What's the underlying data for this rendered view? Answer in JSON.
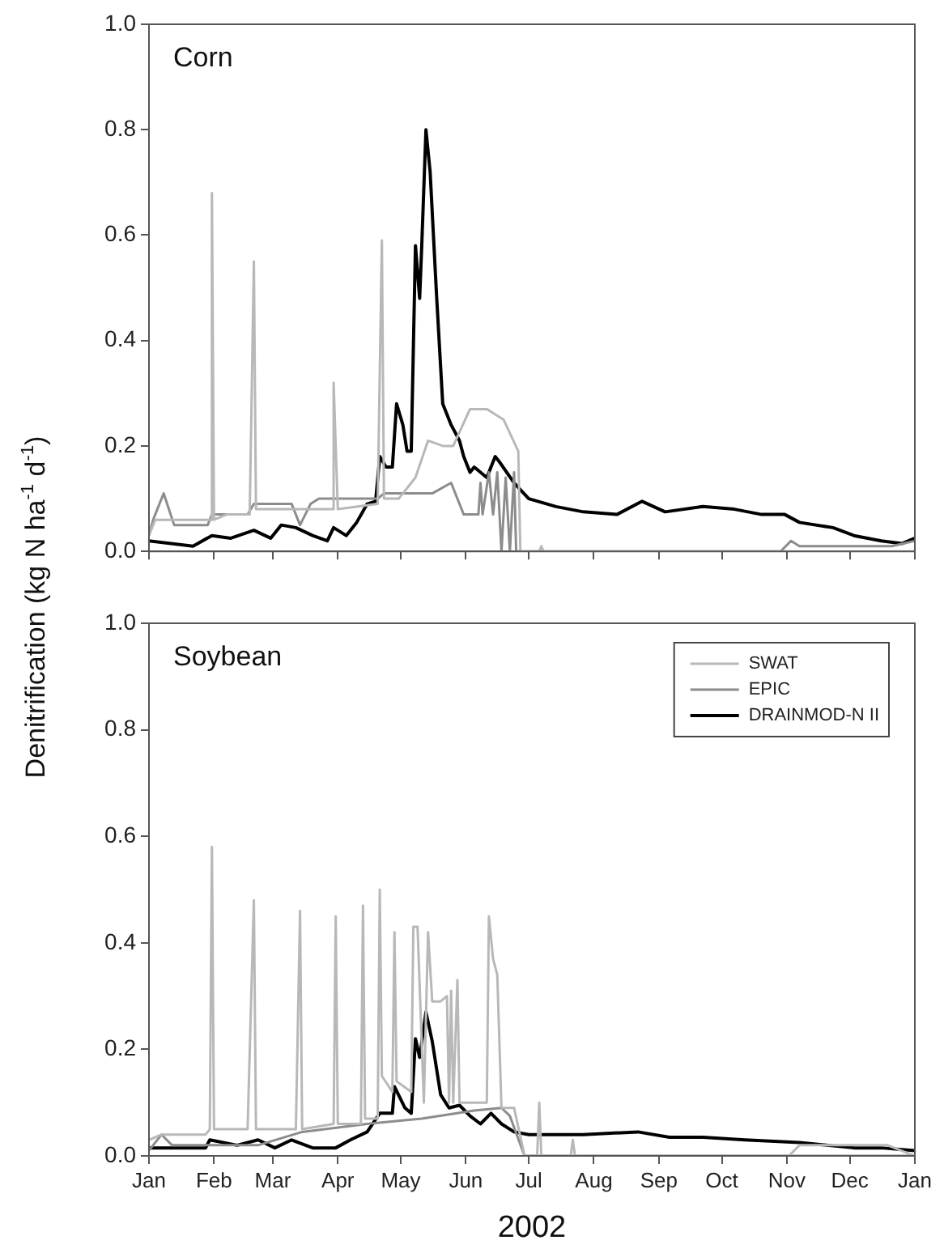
{
  "chart_data": [
    {
      "type": "line",
      "title": "Corn",
      "ylabel": "Denitrification (kg N ha$^{-1}$ d$^{-1}$)",
      "xlim": [
        "2002-01-01",
        "2003-01-01"
      ],
      "ylim": [
        0,
        1
      ],
      "xticks": [
        {
          "value": "2002-01-01",
          "label": null
        },
        {
          "value": "2002-02-01",
          "label": null
        },
        {
          "value": "2002-03-01",
          "label": null
        },
        {
          "value": "2002-04-01",
          "label": null
        },
        {
          "value": "2002-05-01",
          "label": null
        },
        {
          "value": "2002-06-01",
          "label": null
        },
        {
          "value": "2002-07-01",
          "label": null
        },
        {
          "value": "2002-08-01",
          "label": null
        },
        {
          "value": "2002-09-01",
          "label": null
        },
        {
          "value": "2002-10-01",
          "label": null
        },
        {
          "value": "2002-11-01",
          "label": null
        },
        {
          "value": "2002-12-01",
          "label": null
        },
        {
          "value": "2003-01-01",
          "label": null
        }
      ],
      "yticks": [
        {
          "value": 0,
          "label": "0.0"
        },
        {
          "value": 0.2,
          "label": "0.2"
        },
        {
          "value": 0.4,
          "label": "0.4"
        },
        {
          "value": 0.6,
          "label": "0.6"
        },
        {
          "value": 0.8,
          "label": "0.8"
        },
        {
          "value": 1,
          "label": "1.0"
        }
      ],
      "tick_labels": "y",
      "grid": false,
      "legend": false,
      "marker": "none",
      "line_style": "solid",
      "series": [
        {
          "color": "#b8b8b8",
          "x": [
            "2002-01-01",
            "2002-01-04",
            "2002-01-28",
            "2002-01-31",
            "2002-01-31",
            "2002-02-01",
            "2002-02-07",
            "2002-02-18",
            "2002-02-20",
            "2002-02-21",
            "2002-03-10",
            "2002-03-16",
            "2002-03-30",
            "2002-03-30",
            "2002-04-01",
            "2002-04-20",
            "2002-04-22",
            "2002-04-23",
            "2002-04-30",
            "2002-05-08",
            "2002-05-14",
            "2002-05-21",
            "2002-05-26",
            "2002-06-03",
            "2002-06-11",
            "2002-06-19",
            "2002-06-26",
            "2002-06-27",
            "2002-07-06",
            "2002-07-07",
            "2002-07-08",
            "2003-01-01"
          ],
          "values": [
            0.03,
            0.06,
            0.06,
            0.06,
            0.68,
            0.06,
            0.07,
            0.07,
            0.55,
            0.08,
            0.08,
            0.08,
            0.08,
            0.32,
            0.08,
            0.09,
            0.59,
            0.1,
            0.1,
            0.14,
            0.21,
            0.2,
            0.2,
            0.27,
            0.27,
            0.25,
            0.19,
            0,
            0,
            0.01,
            0,
            0
          ]
        },
        {
          "color": "#8c8c8c",
          "x": [
            "2002-01-01",
            "2002-01-03",
            "2002-01-08",
            "2002-01-13",
            "2002-01-29",
            "2002-01-31",
            "2002-02-17",
            "2002-02-20",
            "2002-03-10",
            "2002-03-14",
            "2002-03-19",
            "2002-03-23",
            "2002-04-20",
            "2002-04-23",
            "2002-05-16",
            "2002-05-25",
            "2002-05-31",
            "2002-06-07",
            "2002-06-08",
            "2002-06-09",
            "2002-06-12",
            "2002-06-14",
            "2002-06-16",
            "2002-06-18",
            "2002-06-20",
            "2002-06-22",
            "2002-06-24",
            "2002-06-25",
            "2002-10-29",
            "2002-11-03",
            "2002-11-07",
            "2002-12-03",
            "2002-12-21",
            "2003-01-01"
          ],
          "values": [
            0.03,
            0.06,
            0.11,
            0.05,
            0.05,
            0.07,
            0.07,
            0.09,
            0.09,
            0.05,
            0.09,
            0.1,
            0.1,
            0.11,
            0.11,
            0.13,
            0.07,
            0.07,
            0.13,
            0.07,
            0.15,
            0.07,
            0.15,
            0,
            0.14,
            0,
            0.15,
            0,
            0,
            0.02,
            0.01,
            0.01,
            0.01,
            0.02
          ]
        },
        {
          "color": "#000000",
          "x": [
            "2002-01-01",
            "2002-01-22",
            "2002-01-31",
            "2002-02-09",
            "2002-02-20",
            "2002-02-28",
            "2002-03-05",
            "2002-03-12",
            "2002-03-20",
            "2002-03-27",
            "2002-03-30",
            "2002-04-05",
            "2002-04-10",
            "2002-04-15",
            "2002-04-19",
            "2002-04-21",
            "2002-04-24",
            "2002-04-27",
            "2002-04-29",
            "2002-05-02",
            "2002-05-04",
            "2002-05-06",
            "2002-05-08",
            "2002-05-10",
            "2002-05-11",
            "2002-05-13",
            "2002-05-15",
            "2002-05-18",
            "2002-05-21",
            "2002-05-25",
            "2002-05-29",
            "2002-05-31",
            "2002-06-03",
            "2002-06-05",
            "2002-06-11",
            "2002-06-15",
            "2002-06-17",
            "2002-06-24",
            "2002-07-01",
            "2002-07-14",
            "2002-07-27",
            "2002-08-12",
            "2002-08-24",
            "2002-09-04",
            "2002-09-22",
            "2002-10-07",
            "2002-10-20",
            "2002-10-31",
            "2002-11-07",
            "2002-11-23",
            "2002-12-03",
            "2002-12-16",
            "2002-12-26",
            "2003-01-01"
          ],
          "values": [
            0.02,
            0.01,
            0.03,
            0.025,
            0.04,
            0.025,
            0.05,
            0.045,
            0.03,
            0.02,
            0.045,
            0.03,
            0.055,
            0.09,
            0.095,
            0.18,
            0.16,
            0.16,
            0.28,
            0.24,
            0.19,
            0.19,
            0.58,
            0.48,
            0.58,
            0.8,
            0.72,
            0.49,
            0.28,
            0.24,
            0.21,
            0.18,
            0.15,
            0.16,
            0.14,
            0.18,
            0.17,
            0.13,
            0.1,
            0.085,
            0.075,
            0.07,
            0.095,
            0.075,
            0.085,
            0.08,
            0.07,
            0.07,
            0.055,
            0.045,
            0.03,
            0.02,
            0.015,
            0.025
          ]
        }
      ]
    },
    {
      "type": "line",
      "title": "Soybean",
      "xlabel": "2002",
      "xlim": [
        "2002-01-01",
        "2003-01-01"
      ],
      "ylim": [
        0,
        1
      ],
      "xticks": [
        {
          "value": "2002-01-01",
          "label": "Jan"
        },
        {
          "value": "2002-02-01",
          "label": "Feb"
        },
        {
          "value": "2002-03-01",
          "label": "Mar"
        },
        {
          "value": "2002-04-01",
          "label": "Apr"
        },
        {
          "value": "2002-05-01",
          "label": "May"
        },
        {
          "value": "2002-06-01",
          "label": "Jun"
        },
        {
          "value": "2002-07-01",
          "label": "Jul"
        },
        {
          "value": "2002-08-01",
          "label": "Aug"
        },
        {
          "value": "2002-09-01",
          "label": "Sep"
        },
        {
          "value": "2002-10-01",
          "label": "Oct"
        },
        {
          "value": "2002-11-01",
          "label": "Nov"
        },
        {
          "value": "2002-12-01",
          "label": "Dec"
        },
        {
          "value": "2003-01-01",
          "label": "Jan"
        }
      ],
      "yticks": [
        {
          "value": 0,
          "label": "0.0"
        },
        {
          "value": 0.2,
          "label": "0.2"
        },
        {
          "value": 0.4,
          "label": "0.4"
        },
        {
          "value": 0.6,
          "label": "0.6"
        },
        {
          "value": 0.8,
          "label": "0.8"
        },
        {
          "value": 1,
          "label": "1.0"
        }
      ],
      "grid": false,
      "legend": "top right",
      "marker": "none",
      "line_style": "solid",
      "series": [
        {
          "name": "SWAT",
          "color": "#b8b8b8",
          "x": [
            "2002-01-01",
            "2002-01-07",
            "2002-01-28",
            "2002-01-30",
            "2002-01-31",
            "2002-02-01",
            "2002-02-17",
            "2002-02-20",
            "2002-02-21",
            "2002-03-12",
            "2002-03-14",
            "2002-03-15",
            "2002-03-30",
            "2002-03-31",
            "2002-04-01",
            "2002-04-12",
            "2002-04-13",
            "2002-04-14",
            "2002-04-20",
            "2002-04-21",
            "2002-04-22",
            "2002-04-27",
            "2002-04-28",
            "2002-04-29",
            "2002-05-06",
            "2002-05-07",
            "2002-05-09",
            "2002-05-12",
            "2002-05-14",
            "2002-05-16",
            "2002-05-20",
            "2002-05-23",
            "2002-05-24",
            "2002-05-25",
            "2002-05-26",
            "2002-05-28",
            "2002-05-29",
            "2002-05-30",
            "2002-06-11",
            "2002-06-12",
            "2002-06-14",
            "2002-06-16",
            "2002-06-18",
            "2002-06-24",
            "2002-06-29",
            "2002-07-05",
            "2002-07-06",
            "2002-07-07",
            "2002-07-21",
            "2002-07-22",
            "2002-07-23",
            "2002-11-02",
            "2002-11-07",
            "2002-12-19",
            "2003-01-01"
          ],
          "values": [
            0.03,
            0.04,
            0.04,
            0.05,
            0.58,
            0.05,
            0.05,
            0.48,
            0.05,
            0.05,
            0.46,
            0.05,
            0.06,
            0.45,
            0.06,
            0.06,
            0.47,
            0.07,
            0.07,
            0.5,
            0.15,
            0.12,
            0.42,
            0.14,
            0.12,
            0.43,
            0.43,
            0.1,
            0.42,
            0.29,
            0.29,
            0.3,
            0.1,
            0.31,
            0.1,
            0.33,
            0.1,
            0.1,
            0.1,
            0.45,
            0.37,
            0.34,
            0.09,
            0.09,
            0,
            0,
            0.1,
            0,
            0,
            0.03,
            0,
            0,
            0.02,
            0.02,
            0
          ]
        },
        {
          "name": "EPIC",
          "color": "#8c8c8c",
          "x": [
            "2002-01-01",
            "2002-01-07",
            "2002-01-12",
            "2002-02-22",
            "2002-03-15",
            "2002-04-15",
            "2002-05-11",
            "2002-06-05",
            "2002-06-18",
            "2002-06-22",
            "2002-06-29",
            "2003-01-01"
          ],
          "values": [
            0.01,
            0.04,
            0.02,
            0.02,
            0.045,
            0.06,
            0.07,
            0.085,
            0.09,
            0.075,
            0,
            0
          ]
        },
        {
          "name": "DRAINMOD-N II",
          "color": "#000000",
          "x": [
            "2002-01-01",
            "2002-01-28",
            "2002-01-30",
            "2002-02-12",
            "2002-02-22",
            "2002-03-02",
            "2002-03-10",
            "2002-03-20",
            "2002-03-31",
            "2002-04-07",
            "2002-04-15",
            "2002-04-21",
            "2002-04-27",
            "2002-04-28",
            "2002-05-03",
            "2002-05-06",
            "2002-05-08",
            "2002-05-10",
            "2002-05-13",
            "2002-05-16",
            "2002-05-20",
            "2002-05-24",
            "2002-05-29",
            "2002-06-03",
            "2002-06-08",
            "2002-06-13",
            "2002-06-18",
            "2002-06-24",
            "2002-07-01",
            "2002-07-27",
            "2002-08-22",
            "2002-09-06",
            "2002-09-22",
            "2002-10-12",
            "2002-11-07",
            "2002-12-03",
            "2002-12-16",
            "2003-01-01"
          ],
          "values": [
            0.015,
            0.015,
            0.03,
            0.02,
            0.03,
            0.015,
            0.03,
            0.015,
            0.015,
            0.03,
            0.045,
            0.08,
            0.08,
            0.13,
            0.09,
            0.08,
            0.22,
            0.185,
            0.27,
            0.215,
            0.115,
            0.09,
            0.095,
            0.075,
            0.06,
            0.08,
            0.06,
            0.045,
            0.04,
            0.04,
            0.045,
            0.035,
            0.035,
            0.03,
            0.025,
            0.015,
            0.015,
            0.01
          ]
        }
      ]
    }
  ]
}
